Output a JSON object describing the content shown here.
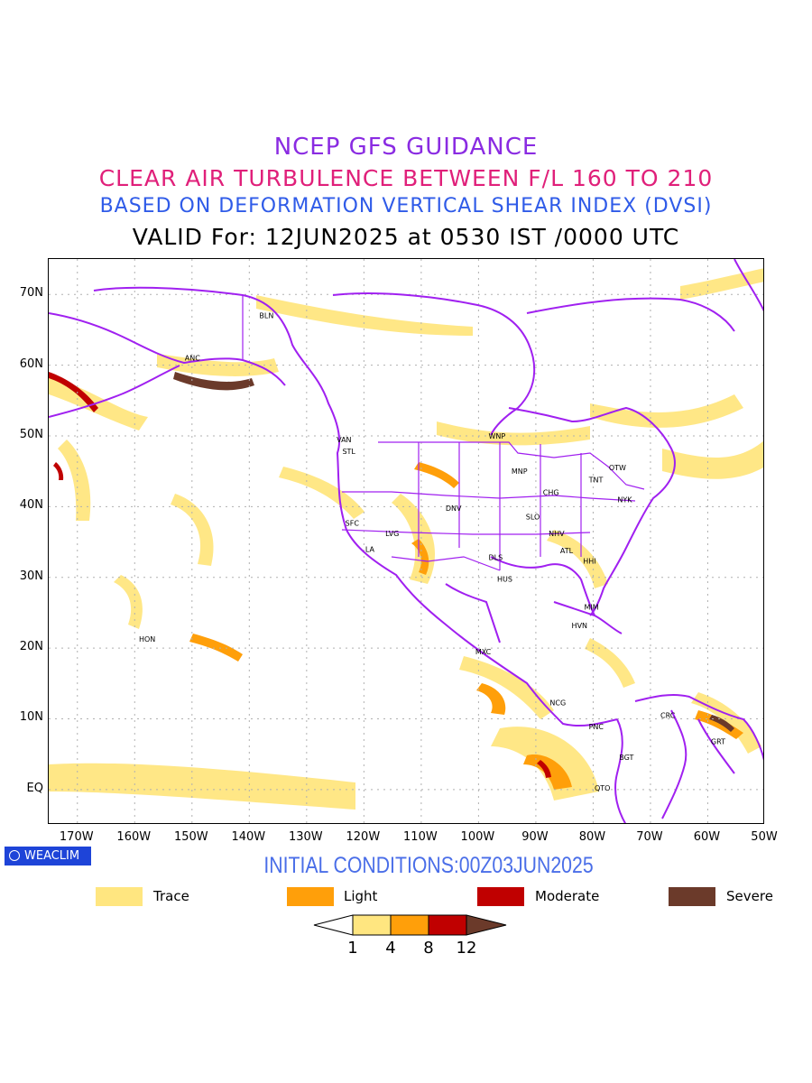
{
  "title": {
    "line1": "NCEP GFS GUIDANCE",
    "line2": "CLEAR AIR TURBULENCE BETWEEN F/L 160 TO 210",
    "line3": "BASED ON DEFORMATION VERTICAL SHEAR INDEX (DVSI)",
    "line4": "VALID For: 12JUN2025 at 0530 IST /0000 UTC"
  },
  "map": {
    "lon_range": [
      -175,
      -50
    ],
    "lat_range": [
      -5,
      75
    ],
    "lat_labels": [
      "70N",
      "60N",
      "50N",
      "40N",
      "30N",
      "20N",
      "10N",
      "EQ"
    ],
    "lon_labels": [
      "170W",
      "160W",
      "150W",
      "140W",
      "130W",
      "120W",
      "110W",
      "100W",
      "90W",
      "80W",
      "70W",
      "60W",
      "50W"
    ],
    "cities": [
      {
        "name": "BLN",
        "lon": -137,
        "lat": 67
      },
      {
        "name": "ANC",
        "lon": -150,
        "lat": 61
      },
      {
        "name": "VAN",
        "lon": -123.5,
        "lat": 49.5
      },
      {
        "name": "STL",
        "lon": -122.5,
        "lat": 47.8
      },
      {
        "name": "WNP",
        "lon": -97,
        "lat": 50
      },
      {
        "name": "MNP",
        "lon": -93,
        "lat": 45
      },
      {
        "name": "OTW",
        "lon": -76,
        "lat": 45.5
      },
      {
        "name": "TNT",
        "lon": -79.5,
        "lat": 43.8
      },
      {
        "name": "CHG",
        "lon": -87.5,
        "lat": 42
      },
      {
        "name": "NYK",
        "lon": -74.5,
        "lat": 41
      },
      {
        "name": "DNV",
        "lon": -104.5,
        "lat": 39.8
      },
      {
        "name": "SFC",
        "lon": -122,
        "lat": 37.7
      },
      {
        "name": "LVG",
        "lon": -115,
        "lat": 36.2
      },
      {
        "name": "SLO",
        "lon": -90.5,
        "lat": 38.6
      },
      {
        "name": "NHV",
        "lon": -86.5,
        "lat": 36.2
      },
      {
        "name": "LA",
        "lon": -118.5,
        "lat": 34
      },
      {
        "name": "DLS",
        "lon": -97,
        "lat": 32.8
      },
      {
        "name": "ATL",
        "lon": -84.5,
        "lat": 33.8
      },
      {
        "name": "HHI",
        "lon": -80.5,
        "lat": 32.3
      },
      {
        "name": "HUS",
        "lon": -95.5,
        "lat": 29.8
      },
      {
        "name": "MIM",
        "lon": -80.3,
        "lat": 25.8
      },
      {
        "name": "HVN",
        "lon": -82.5,
        "lat": 23.2
      },
      {
        "name": "HON",
        "lon": -158,
        "lat": 21.3
      },
      {
        "name": "MXC",
        "lon": -99.3,
        "lat": 19.5
      },
      {
        "name": "NCG",
        "lon": -86.3,
        "lat": 12.3
      },
      {
        "name": "CRC",
        "lon": -67,
        "lat": 10.5
      },
      {
        "name": "PNC",
        "lon": -79.5,
        "lat": 8.9
      },
      {
        "name": "BGT",
        "lon": -74.2,
        "lat": 4.6
      },
      {
        "name": "GRT",
        "lon": -58.2,
        "lat": 6.8
      },
      {
        "name": "QTO",
        "lon": -78.5,
        "lat": 0.2
      }
    ]
  },
  "logo": "WEACLIM",
  "initial_conditions": "INITIAL CONDITIONS:00Z03JUN2025",
  "legend": [
    {
      "label": "Trace",
      "color": "#ffe680"
    },
    {
      "label": "Light",
      "color": "#ff9f0a"
    },
    {
      "label": "Moderate",
      "color": "#c00000"
    },
    {
      "label": "Severe",
      "color": "#6b3a2a"
    }
  ],
  "colorbar": {
    "ticks": [
      "1",
      "4",
      "8",
      "12"
    ],
    "colors": [
      "#ffe680",
      "#ff9f0a",
      "#c00000",
      "#6b3a2a"
    ]
  },
  "colors": {
    "coastline": "#a020f0",
    "grid": "#b0b0b0"
  }
}
